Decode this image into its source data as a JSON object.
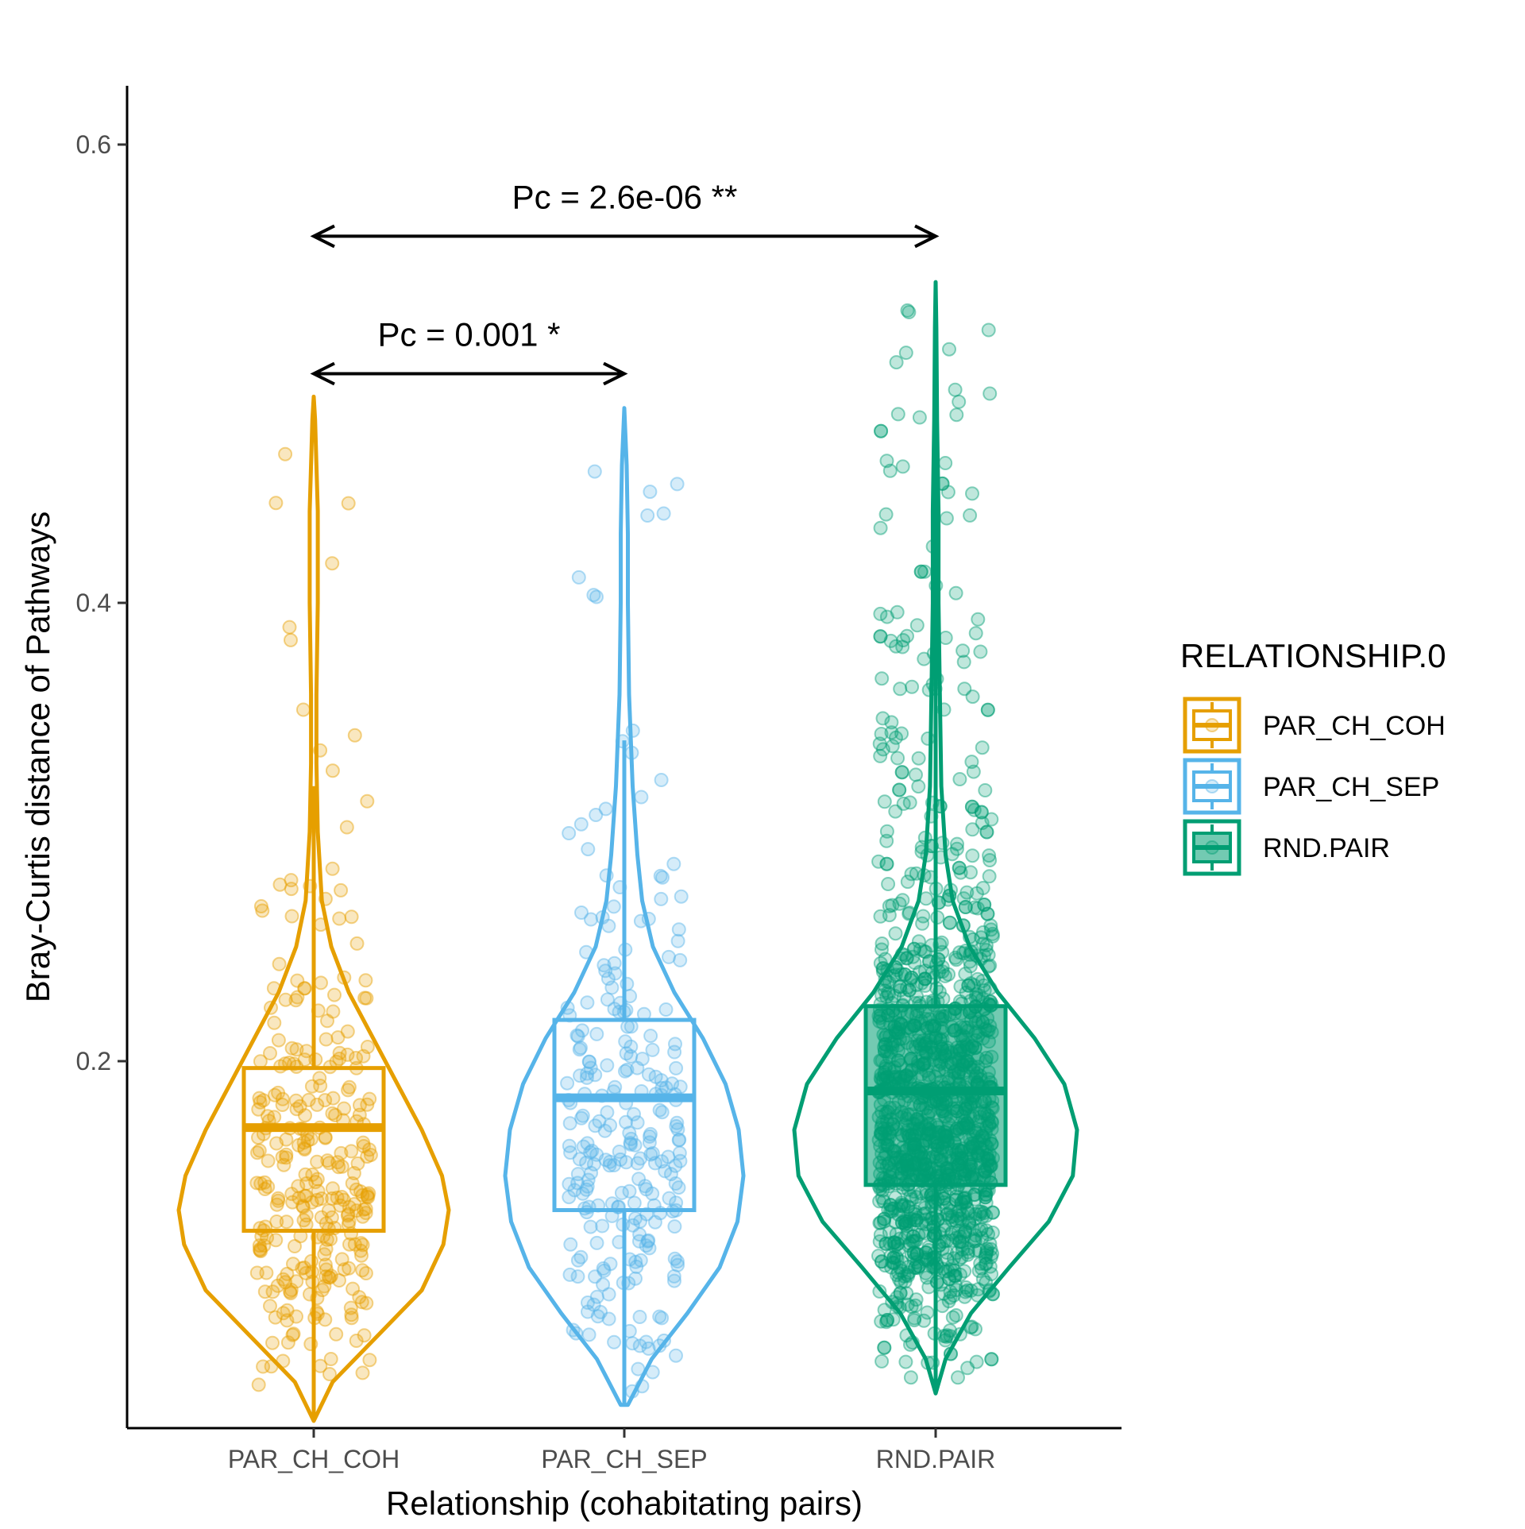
{
  "chart_data": {
    "type": "violin",
    "xlabel": "Relationship (cohabitating pairs)",
    "ylabel": "Bray-Curtis distance of Pathways",
    "categories": [
      "PAR_CH_COH",
      "PAR_CH_SEP",
      "RND.PAIR"
    ],
    "y_ticks": [
      0.2,
      0.4,
      0.6
    ],
    "y_tick_labels": [
      "0.2",
      "0.4",
      "0.6"
    ],
    "ylim": [
      0.03,
      0.63
    ],
    "grid": false,
    "legend": {
      "title": "RELATIONSHIP.0",
      "position": "right",
      "entries": [
        "PAR_CH_COH",
        "PAR_CH_SEP",
        "RND.PAIR"
      ]
    },
    "colors": {
      "PAR_CH_COH": "#E69F00",
      "PAR_CH_SEP": "#56B4E9",
      "RND.PAIR": "#009E73"
    },
    "box_fill_alpha": {
      "PAR_CH_COH": 0.0,
      "PAR_CH_SEP": 0.0,
      "RND.PAIR": 0.55
    },
    "series": [
      {
        "category": "PAR_CH_COH",
        "box": {
          "q1": 0.126,
          "median": 0.171,
          "q3": 0.197
        },
        "whiskers": [
          0.043,
          0.32
        ],
        "range": [
          0.043,
          0.49
        ],
        "points_shown": 300,
        "violin": [
          [
            0.043,
            0.0
          ],
          [
            0.06,
            0.14
          ],
          [
            0.08,
            0.47
          ],
          [
            0.1,
            0.8
          ],
          [
            0.12,
            0.96
          ],
          [
            0.135,
            1.0
          ],
          [
            0.15,
            0.95
          ],
          [
            0.17,
            0.8
          ],
          [
            0.19,
            0.62
          ],
          [
            0.21,
            0.44
          ],
          [
            0.23,
            0.26
          ],
          [
            0.25,
            0.13
          ],
          [
            0.27,
            0.06
          ],
          [
            0.3,
            0.03
          ],
          [
            0.33,
            0.02
          ],
          [
            0.36,
            0.02
          ],
          [
            0.4,
            0.03
          ],
          [
            0.44,
            0.03
          ],
          [
            0.46,
            0.02
          ],
          [
            0.48,
            0.01
          ],
          [
            0.49,
            0.0
          ]
        ]
      },
      {
        "category": "PAR_CH_SEP",
        "box": {
          "q1": 0.135,
          "median": 0.184,
          "q3": 0.218
        },
        "whiskers": [
          0.05,
          0.34
        ],
        "range": [
          0.05,
          0.485
        ],
        "points_shown": 260,
        "violin": [
          [
            0.05,
            0.03
          ],
          [
            0.07,
            0.23
          ],
          [
            0.09,
            0.53
          ],
          [
            0.11,
            0.8
          ],
          [
            0.13,
            0.95
          ],
          [
            0.15,
            1.0
          ],
          [
            0.17,
            0.96
          ],
          [
            0.19,
            0.85
          ],
          [
            0.21,
            0.66
          ],
          [
            0.23,
            0.42
          ],
          [
            0.25,
            0.24
          ],
          [
            0.27,
            0.15
          ],
          [
            0.29,
            0.11
          ],
          [
            0.32,
            0.07
          ],
          [
            0.36,
            0.04
          ],
          [
            0.4,
            0.03
          ],
          [
            0.43,
            0.03
          ],
          [
            0.46,
            0.02
          ],
          [
            0.485,
            0.0
          ]
        ]
      },
      {
        "category": "RND.PAIR",
        "box": {
          "q1": 0.146,
          "median": 0.187,
          "q3": 0.224
        },
        "whiskers": [
          0.055,
          0.54
        ],
        "range": [
          0.055,
          0.54
        ],
        "points_shown": 1500,
        "violin": [
          [
            0.055,
            0.0
          ],
          [
            0.07,
            0.07
          ],
          [
            0.09,
            0.25
          ],
          [
            0.11,
            0.52
          ],
          [
            0.13,
            0.8
          ],
          [
            0.15,
            0.97
          ],
          [
            0.17,
            1.0
          ],
          [
            0.19,
            0.91
          ],
          [
            0.21,
            0.7
          ],
          [
            0.23,
            0.44
          ],
          [
            0.25,
            0.24
          ],
          [
            0.27,
            0.12
          ],
          [
            0.29,
            0.07
          ],
          [
            0.32,
            0.04
          ],
          [
            0.36,
            0.03
          ],
          [
            0.4,
            0.02
          ],
          [
            0.44,
            0.02
          ],
          [
            0.48,
            0.01
          ],
          [
            0.52,
            0.005
          ],
          [
            0.54,
            0.0
          ]
        ]
      }
    ],
    "comparisons": [
      {
        "from": "PAR_CH_COH",
        "to": "PAR_CH_SEP",
        "y": 0.5,
        "label": "Pc = 0.001 *"
      },
      {
        "from": "PAR_CH_COH",
        "to": "RND.PAIR",
        "y": 0.56,
        "label": "Pc = 2.6e-06 **"
      }
    ]
  }
}
